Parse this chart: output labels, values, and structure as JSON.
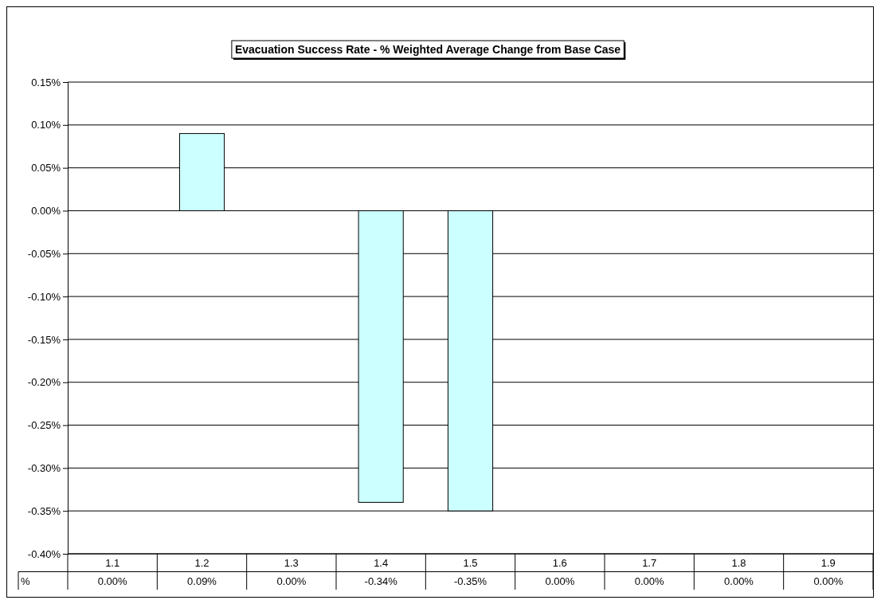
{
  "chart_data": {
    "type": "bar",
    "title": "Evacuation Success Rate - % Weighted Average Change from Base Case",
    "categories": [
      "1.1",
      "1.2",
      "1.3",
      "1.4",
      "1.5",
      "1.6",
      "1.7",
      "1.8",
      "1.9"
    ],
    "series": [
      {
        "name": "%",
        "color": "#ccffff",
        "values": [
          0,
          0.09,
          0,
          -0.34,
          -0.35,
          0,
          0,
          0,
          0
        ],
        "value_labels": [
          "0.00%",
          "0.09%",
          "0.00%",
          "-0.34%",
          "-0.35%",
          "0.00%",
          "0.00%",
          "0.00%",
          "0.00%"
        ]
      }
    ],
    "ylim": [
      -0.4,
      0.15
    ],
    "yticks": [
      {
        "value": 0.15,
        "label": "0.15%"
      },
      {
        "value": 0.1,
        "label": "0.10%"
      },
      {
        "value": 0.05,
        "label": "0.05%"
      },
      {
        "value": 0,
        "label": "0.00%"
      },
      {
        "value": -0.05,
        "label": "-0.05%"
      },
      {
        "value": -0.1,
        "label": "-0.10%"
      },
      {
        "value": -0.15,
        "label": "-0.15%"
      },
      {
        "value": -0.2,
        "label": "-0.20%"
      },
      {
        "value": -0.25,
        "label": "-0.25%"
      },
      {
        "value": -0.3,
        "label": "-0.30%"
      },
      {
        "value": -0.35,
        "label": "-0.35%"
      },
      {
        "value": -0.4,
        "label": "-0.40%"
      }
    ],
    "grid": "y",
    "legend": "bottom"
  }
}
